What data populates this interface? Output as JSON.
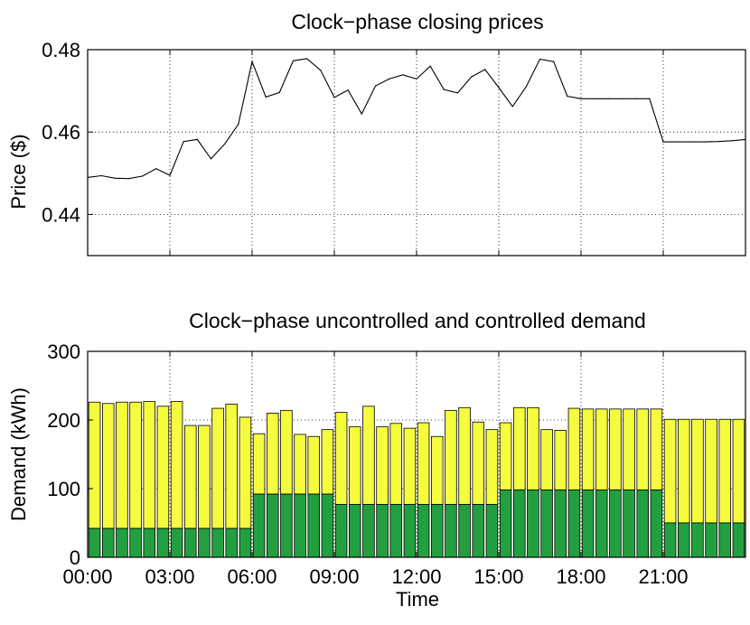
{
  "chart_data": [
    {
      "type": "line",
      "title": "Clock−phase closing prices",
      "xlabel": "",
      "ylabel": "Price ($)",
      "ylim": [
        0.43,
        0.48
      ],
      "yticks": [
        "0.44",
        "0.46",
        "0.48"
      ],
      "ytick_values": [
        0.44,
        0.46,
        0.48
      ],
      "xlim": [
        0,
        48
      ],
      "xtick_values": [
        0,
        6,
        12,
        18,
        24,
        30,
        36,
        42
      ],
      "grid": true,
      "series": [
        {
          "color": "#000000",
          "x": [
            0,
            1,
            2,
            3,
            4,
            5,
            6,
            7,
            8,
            9,
            10,
            11,
            12,
            13,
            14,
            15,
            16,
            17,
            18,
            19,
            20,
            21,
            22,
            23,
            24,
            25,
            26,
            27,
            28,
            29,
            30,
            31,
            32,
            33,
            34,
            35,
            36,
            37,
            38,
            39,
            40,
            41,
            42,
            43,
            44,
            45,
            46,
            47,
            48
          ],
          "values": [
            0.449,
            0.4494,
            0.4488,
            0.4487,
            0.4493,
            0.4511,
            0.4495,
            0.4577,
            0.4582,
            0.4535,
            0.4571,
            0.4619,
            0.4771,
            0.4685,
            0.4696,
            0.4773,
            0.4778,
            0.475,
            0.4684,
            0.4702,
            0.4644,
            0.4712,
            0.4729,
            0.4739,
            0.4729,
            0.476,
            0.4703,
            0.4695,
            0.4734,
            0.4752,
            0.4708,
            0.4662,
            0.471,
            0.4777,
            0.4771,
            0.4687,
            0.4681,
            0.4681,
            0.4681,
            0.4681,
            0.4681,
            0.4681,
            0.4576,
            0.4576,
            0.4576,
            0.4576,
            0.4577,
            0.4579,
            0.4582
          ]
        }
      ]
    },
    {
      "type": "bar",
      "stacked": true,
      "title": "Clock−phase uncontrolled and controlled demand",
      "xlabel": "Time",
      "ylabel": "Demand (kWh)",
      "ylim": [
        0,
        300
      ],
      "yticks": [
        "0",
        "100",
        "200",
        "300"
      ],
      "ytick_values": [
        0,
        100,
        200,
        300
      ],
      "xlim": [
        0,
        48
      ],
      "xticks": [
        "00:00",
        "03:00",
        "06:00",
        "09:00",
        "12:00",
        "15:00",
        "18:00",
        "21:00"
      ],
      "xtick_values": [
        0,
        6,
        12,
        18,
        24,
        30,
        36,
        42
      ],
      "grid": true,
      "series": [
        {
          "color": "#22a040",
          "values": [
            42,
            42,
            42,
            42,
            42,
            42,
            42,
            42,
            42,
            42,
            42,
            42,
            92,
            92,
            92,
            92,
            92,
            92,
            77,
            77,
            77,
            77,
            77,
            77,
            77,
            77,
            77,
            77,
            77,
            77,
            98,
            98,
            98,
            98,
            98,
            98,
            98,
            98,
            98,
            98,
            98,
            98,
            50,
            50,
            50,
            50,
            50,
            50
          ]
        },
        {
          "color": "#f5fc3e",
          "totals": [
            226,
            224,
            226,
            226,
            227,
            220,
            227,
            192,
            192,
            217,
            223,
            204,
            180,
            210,
            214,
            179,
            176,
            186,
            211,
            190,
            220,
            190,
            195,
            188,
            196,
            176,
            214,
            218,
            197,
            186,
            196,
            218,
            218,
            186,
            185,
            217,
            216,
            216,
            216,
            216,
            216,
            216,
            201,
            201,
            201,
            201,
            201,
            201
          ]
        }
      ]
    }
  ]
}
